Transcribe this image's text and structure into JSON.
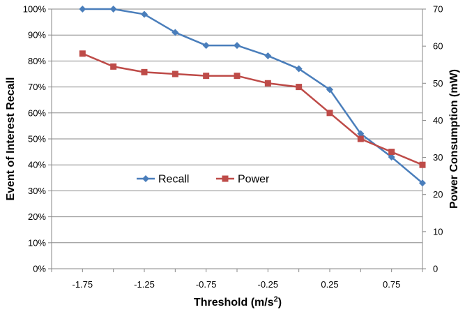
{
  "chart_data": {
    "type": "line",
    "x_tick_labels": [
      "-1.75",
      "-1.25",
      "-0.75",
      "-0.25",
      "0.25",
      "0.75"
    ],
    "xlabel": "Threshold  (m/s",
    "xlabel_sup": "2",
    "xlabel_close": ")",
    "ylabel_left": "Event of Interest Recall",
    "ylabel_right": "Power Consumption  (mW)",
    "y_left_ticks": [
      "0%",
      "10%",
      "20%",
      "30%",
      "40%",
      "50%",
      "60%",
      "70%",
      "80%",
      "90%",
      "100%"
    ],
    "y_right_ticks": [
      "0",
      "10",
      "20",
      "30",
      "40",
      "50",
      "60",
      "70"
    ],
    "xlim": [
      -2.0,
      1.0
    ],
    "ylim_left": [
      0,
      100
    ],
    "ylim_right": [
      0,
      70
    ],
    "grid": true,
    "legend_position": "center-left",
    "x": [
      -1.75,
      -1.5,
      -1.25,
      -1.0,
      -0.75,
      -0.5,
      -0.25,
      0.0,
      0.25,
      0.5,
      0.75,
      1.0
    ],
    "series": [
      {
        "name": "Recall",
        "axis": "left",
        "color": "#4a7ebb",
        "marker": "diamond",
        "values": [
          100,
          100,
          98,
          91,
          86,
          86,
          82,
          77,
          69,
          52,
          43,
          33
        ]
      },
      {
        "name": "Power",
        "axis": "right",
        "color": "#be4b48",
        "marker": "square",
        "values": [
          58,
          54.5,
          53,
          52.5,
          52,
          52,
          50,
          49,
          42,
          35,
          31.5,
          28
        ]
      }
    ]
  }
}
